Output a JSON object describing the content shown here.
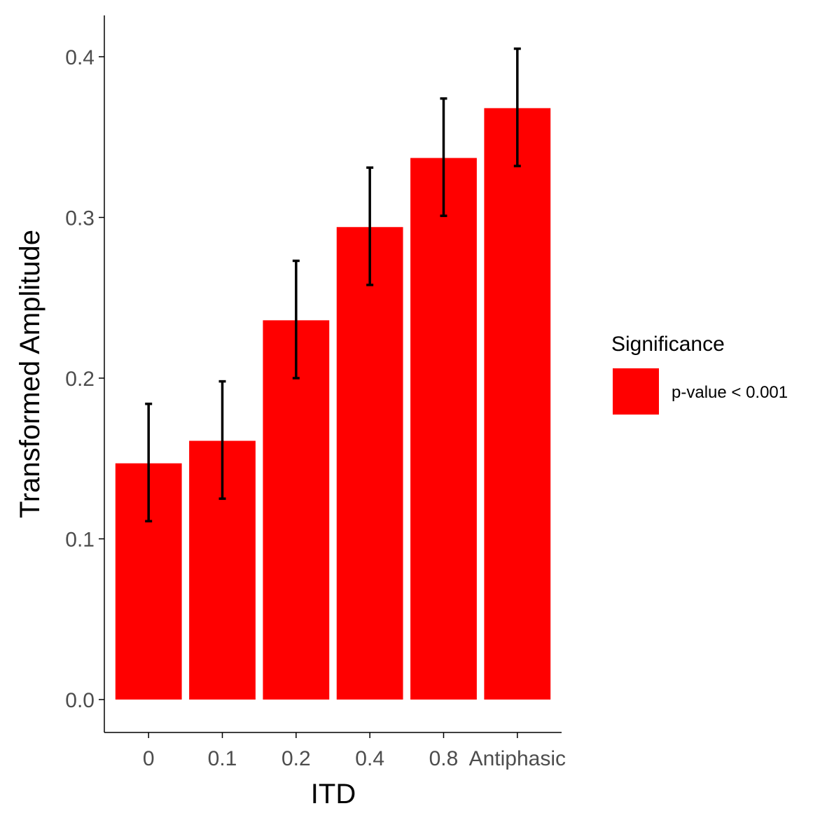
{
  "chart_data": {
    "type": "bar",
    "title": "",
    "xlabel": "ITD",
    "ylabel": "Transformed Amplitude",
    "categories": [
      "0",
      "0.1",
      "0.2",
      "0.4",
      "0.8",
      "Antiphasic"
    ],
    "series": [
      {
        "name": "p-value < 0.001",
        "values": [
          0.147,
          0.161,
          0.236,
          0.294,
          0.337,
          0.368
        ],
        "error_low": [
          0.111,
          0.125,
          0.2,
          0.258,
          0.301,
          0.332
        ],
        "error_high": [
          0.184,
          0.198,
          0.273,
          0.331,
          0.374,
          0.405
        ]
      }
    ],
    "yticks": [
      "0.0",
      "0.1",
      "0.2",
      "0.3",
      "0.4"
    ],
    "ylim": [
      -0.02,
      0.426
    ],
    "grid": false,
    "legend": {
      "title": "Significance",
      "position": "right",
      "entries": [
        "p-value < 0.001"
      ]
    },
    "colors": {
      "bar": "#ff0000",
      "error_bar": "#000000",
      "axis": "#000000"
    }
  }
}
